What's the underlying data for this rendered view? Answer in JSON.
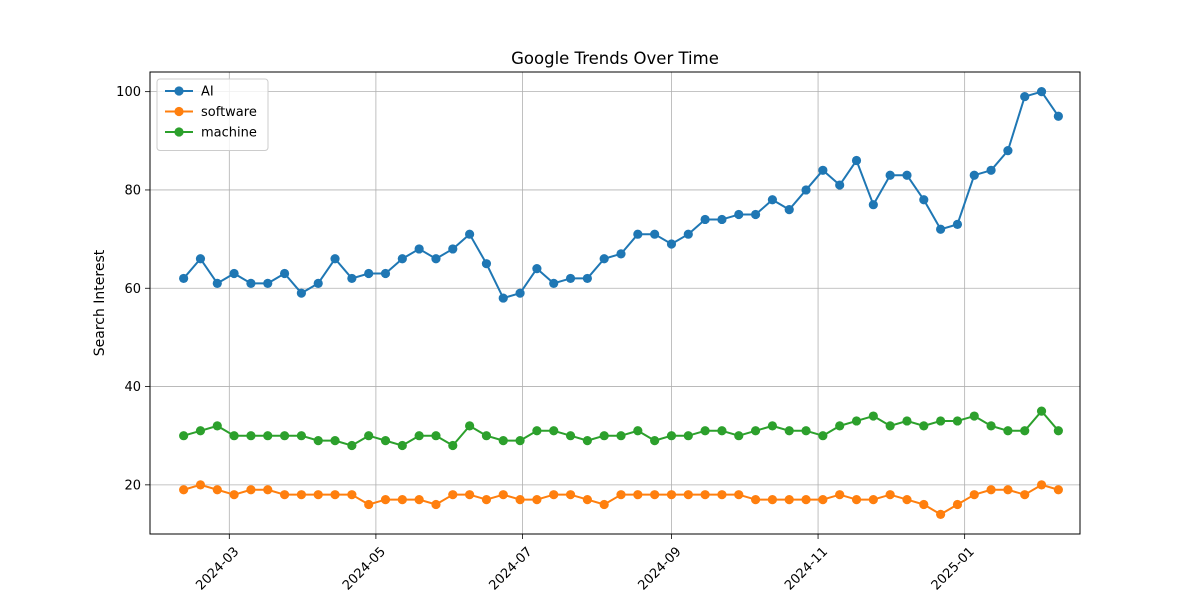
{
  "chart_data": {
    "type": "line",
    "title": "Google Trends Over Time",
    "xlabel": "",
    "ylabel": "Search Interest",
    "x_tick_labels": [
      "2024-03",
      "2024-05",
      "2024-07",
      "2024-09",
      "2024-11",
      "2025-01"
    ],
    "x_tick_dates": [
      "2024-03-01",
      "2024-05-01",
      "2024-07-01",
      "2024-09-01",
      "2024-11-01",
      "2025-01-01"
    ],
    "xlim": [
      "2024-01-28",
      "2025-02-18"
    ],
    "ylim": [
      10,
      104
    ],
    "y_ticks": [
      20,
      40,
      60,
      80,
      100
    ],
    "grid": true,
    "legend_position": "top-left",
    "x": [
      "2024-02-11",
      "2024-02-18",
      "2024-02-25",
      "2024-03-03",
      "2024-03-10",
      "2024-03-17",
      "2024-03-24",
      "2024-03-31",
      "2024-04-07",
      "2024-04-14",
      "2024-04-21",
      "2024-04-28",
      "2024-05-05",
      "2024-05-12",
      "2024-05-19",
      "2024-05-26",
      "2024-06-02",
      "2024-06-09",
      "2024-06-16",
      "2024-06-23",
      "2024-06-30",
      "2024-07-07",
      "2024-07-14",
      "2024-07-21",
      "2024-07-28",
      "2024-08-04",
      "2024-08-11",
      "2024-08-18",
      "2024-08-25",
      "2024-09-01",
      "2024-09-08",
      "2024-09-15",
      "2024-09-22",
      "2024-09-29",
      "2024-10-06",
      "2024-10-13",
      "2024-10-20",
      "2024-10-27",
      "2024-11-03",
      "2024-11-10",
      "2024-11-17",
      "2024-11-24",
      "2024-12-01",
      "2024-12-08",
      "2024-12-15",
      "2024-12-22",
      "2024-12-29",
      "2025-01-05",
      "2025-01-12",
      "2025-01-19",
      "2025-01-26",
      "2025-02-02",
      "2025-02-09"
    ],
    "series": [
      {
        "name": "AI",
        "color": "#1f77b4",
        "values": [
          62,
          66,
          61,
          63,
          61,
          61,
          63,
          59,
          61,
          66,
          62,
          63,
          63,
          66,
          68,
          66,
          68,
          71,
          65,
          58,
          59,
          64,
          61,
          62,
          62,
          66,
          67,
          71,
          71,
          69,
          71,
          74,
          74,
          75,
          75,
          78,
          76,
          80,
          84,
          81,
          86,
          77,
          83,
          83,
          78,
          72,
          73,
          83,
          84,
          88,
          99,
          100,
          95
        ]
      },
      {
        "name": "software",
        "color": "#ff7f0e",
        "values": [
          19,
          20,
          19,
          18,
          19,
          19,
          18,
          18,
          18,
          18,
          18,
          16,
          17,
          17,
          17,
          16,
          18,
          18,
          17,
          18,
          17,
          17,
          18,
          18,
          17,
          16,
          18,
          18,
          18,
          18,
          18,
          18,
          18,
          18,
          17,
          17,
          17,
          17,
          17,
          18,
          17,
          17,
          18,
          17,
          16,
          14,
          16,
          18,
          19,
          19,
          18,
          20,
          19
        ]
      },
      {
        "name": "machine",
        "color": "#2ca02c",
        "values": [
          30,
          31,
          32,
          30,
          30,
          30,
          30,
          30,
          29,
          29,
          28,
          30,
          29,
          28,
          30,
          30,
          28,
          32,
          30,
          29,
          29,
          31,
          31,
          30,
          29,
          30,
          30,
          31,
          29,
          30,
          30,
          31,
          31,
          30,
          31,
          32,
          31,
          31,
          30,
          32,
          33,
          34,
          32,
          33,
          32,
          33,
          33,
          34,
          32,
          31,
          31,
          35,
          31
        ]
      }
    ]
  }
}
